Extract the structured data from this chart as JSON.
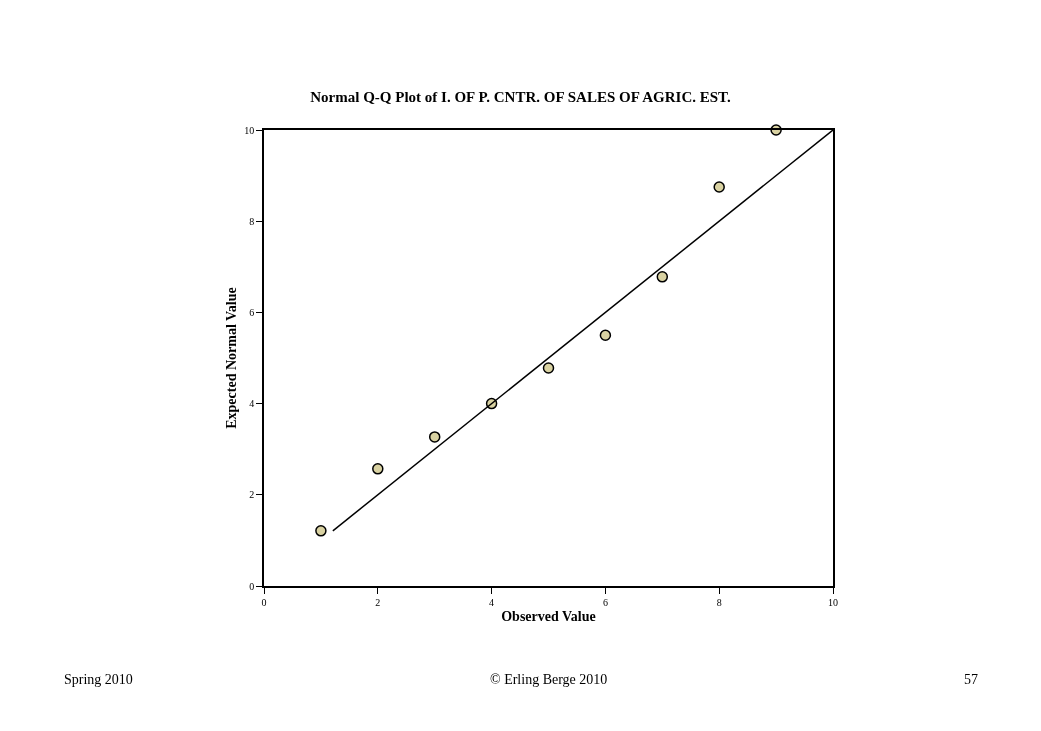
{
  "chart_data": {
    "type": "scatter",
    "title": "Normal Q-Q Plot of I. OF P. CNTR. OF SALES OF AGRIC. EST.",
    "xlabel": "Observed Value",
    "ylabel": "Expected Normal Value",
    "series": [
      {
        "color": "#d9d2a2",
        "marker": "circle",
        "x": [
          1,
          2,
          3,
          4,
          5,
          6,
          7,
          8,
          9
        ],
        "values": [
          1.21,
          2.57,
          3.27,
          4.0,
          4.78,
          5.5,
          6.78,
          8.75,
          10.0
        ]
      },
      {
        "type": "line",
        "color": "#000000",
        "marker": "none",
        "line_style": "solid",
        "x": [
          1.21,
          10
        ],
        "values": [
          1.21,
          10
        ]
      }
    ],
    "xlim": [
      0,
      10
    ],
    "xticks": [
      0,
      2,
      4,
      6,
      8,
      10
    ],
    "ylim": [
      0,
      10
    ],
    "yticks": [
      0,
      2,
      4,
      6,
      8,
      10
    ],
    "annotations": [
      "Spring 2010",
      "© Erling Berge 2010",
      "57"
    ]
  }
}
